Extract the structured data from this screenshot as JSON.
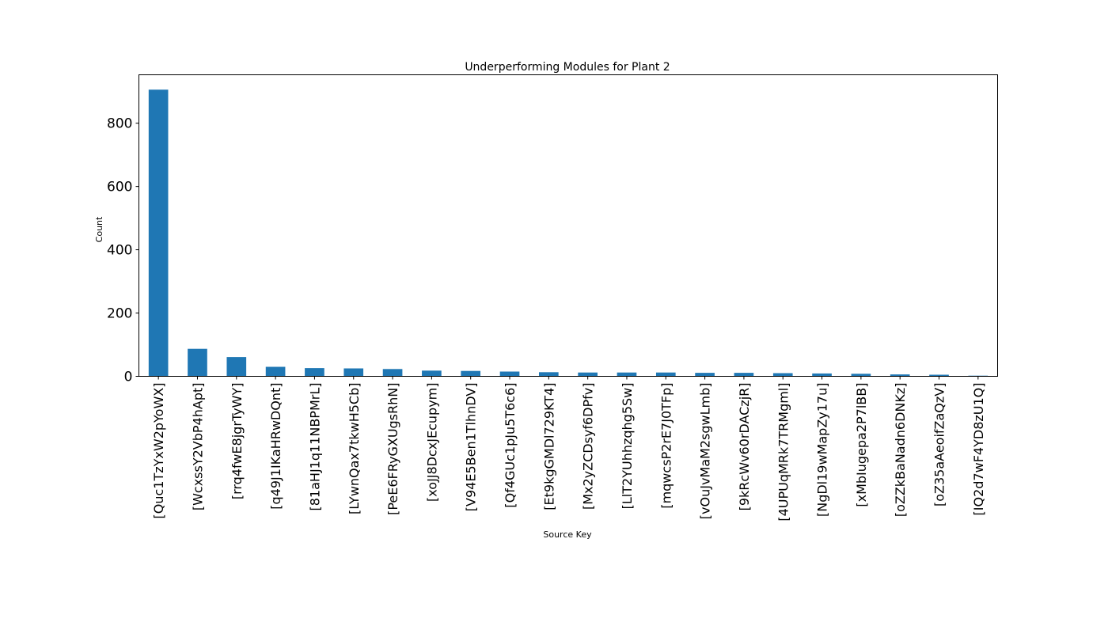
{
  "chart_data": {
    "type": "bar",
    "title": "Underperforming Modules for Plant 2",
    "xlabel": "Source Key",
    "ylabel": "Count",
    "categories": [
      "[Quc1TzYxW2pYoWX]",
      "[WcxssY2VbP4hApt]",
      "[rrq4fwE8jgrTyWY]",
      "[q49J1IKaHRwDQnt]",
      "[81aHJ1q11NBPMrL]",
      "[LYwnQax7tkwH5Cb]",
      "[PeE6FRyGXUgsRhN]",
      "[xoJJ8DcxJEcupym]",
      "[V94E5Ben1TlhnDV]",
      "[Qf4GUc1pJu5T6c6]",
      "[Et9kgGMDl729KT4]",
      "[Mx2yZCDsyf6DPfv]",
      "[LlT2YUhhzqhg5Sw]",
      "[mqwcsP2rE7J0TFp]",
      "[vOuJvMaM2sgwLmb]",
      "[9kRcWv60rDACzjR]",
      "[4UPUqMRk7TRMgml]",
      "[NgDl19wMapZy17u]",
      "[xMbIugepa2P7lBB]",
      "[oZZkBaNadn6DNKz]",
      "[oZ35aAeoifZaQzV]",
      "[IQ2d7wF4YD8zU1Q]"
    ],
    "values": [
      906,
      87,
      61,
      30,
      26,
      25,
      23,
      18,
      17,
      15,
      13,
      12,
      12,
      12,
      11,
      11,
      10,
      9,
      8,
      6,
      5,
      2
    ],
    "ylim": [
      0,
      953
    ],
    "yticks": [
      0,
      200,
      400,
      600,
      800
    ],
    "grid": false,
    "legend": "none",
    "bar_color": "#1f77b4"
  }
}
